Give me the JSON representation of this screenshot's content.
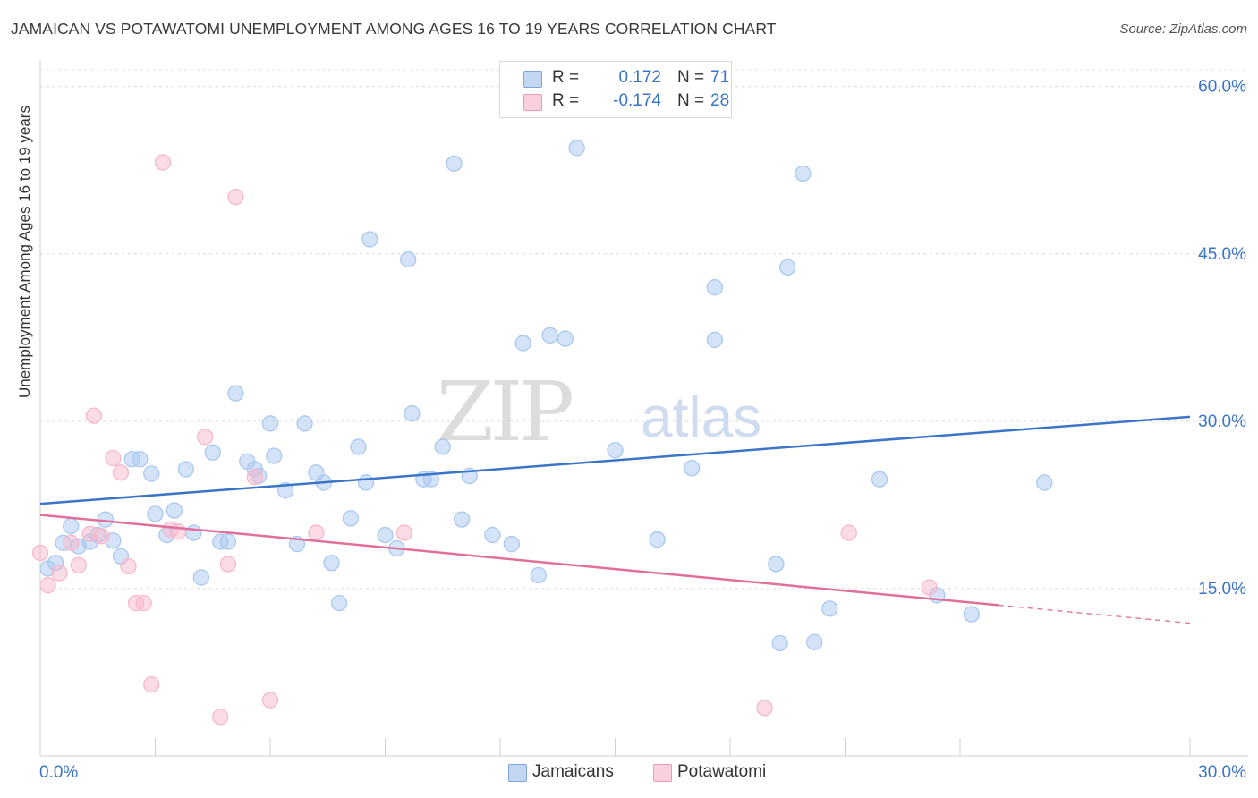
{
  "title": "JAMAICAN VS POTAWATOMI UNEMPLOYMENT AMONG AGES 16 TO 19 YEARS CORRELATION CHART",
  "source": "Source: ZipAtlas.com",
  "watermark": {
    "zip": "ZIP",
    "atlas": "atlas"
  },
  "legend_top": {
    "rows": [
      {
        "r_label": "R =",
        "r_value": "0.172",
        "n_label": "N =",
        "n_value": "71",
        "color": "#aac8f0"
      },
      {
        "r_label": "R =",
        "r_value": "-0.174",
        "n_label": "N =",
        "n_value": "28",
        "color": "#f7b8cb"
      }
    ]
  },
  "legend_bottom": [
    {
      "label": "Jamaicans",
      "color": "#aac8f0"
    },
    {
      "label": "Potawatomi",
      "color": "#f7b8cb"
    }
  ],
  "chart_data": {
    "type": "scatter",
    "title": "JAMAICAN VS POTAWATOMI UNEMPLOYMENT AMONG AGES 16 TO 19 YEARS CORRELATION CHART",
    "xlabel": "",
    "ylabel": "Unemployment Among Ages 16 to 19 years",
    "xlim": [
      0,
      30
    ],
    "ylim": [
      0,
      61.5
    ],
    "x_tick_labels": [
      "0.0%",
      "30.0%"
    ],
    "y_ticks": [
      15,
      30,
      45,
      60
    ],
    "y_tick_labels": [
      "15.0%",
      "30.0%",
      "45.0%",
      "60.0%"
    ],
    "grid": true,
    "legend": "top-center",
    "series": [
      {
        "name": "Jamaicans",
        "color": "#3b75c7",
        "fill": "#aac8f0",
        "trend": {
          "x": [
            0,
            30
          ],
          "y": [
            22.6,
            30.4
          ]
        },
        "points": [
          [
            0.2,
            16.8
          ],
          [
            0.4,
            17.3
          ],
          [
            0.6,
            19.1
          ],
          [
            0.8,
            20.6
          ],
          [
            1.0,
            18.8
          ],
          [
            1.3,
            19.2
          ],
          [
            1.5,
            19.8
          ],
          [
            1.7,
            21.2
          ],
          [
            1.9,
            19.3
          ],
          [
            2.1,
            17.9
          ],
          [
            2.4,
            26.6
          ],
          [
            2.6,
            26.6
          ],
          [
            2.9,
            25.3
          ],
          [
            3.0,
            21.7
          ],
          [
            3.3,
            19.8
          ],
          [
            3.5,
            22.0
          ],
          [
            3.8,
            25.7
          ],
          [
            4.0,
            20.0
          ],
          [
            4.2,
            16.0
          ],
          [
            4.5,
            27.2
          ],
          [
            4.7,
            19.2
          ],
          [
            4.9,
            19.2
          ],
          [
            5.1,
            32.5
          ],
          [
            5.4,
            26.4
          ],
          [
            5.6,
            25.7
          ],
          [
            5.7,
            25.1
          ],
          [
            6.0,
            29.8
          ],
          [
            6.1,
            26.9
          ],
          [
            6.4,
            23.8
          ],
          [
            6.7,
            19.0
          ],
          [
            6.9,
            29.8
          ],
          [
            7.2,
            25.4
          ],
          [
            7.4,
            24.5
          ],
          [
            7.6,
            17.3
          ],
          [
            7.8,
            13.7
          ],
          [
            8.1,
            21.3
          ],
          [
            8.3,
            27.7
          ],
          [
            8.5,
            24.5
          ],
          [
            8.6,
            46.3
          ],
          [
            9.0,
            19.8
          ],
          [
            9.3,
            18.6
          ],
          [
            9.6,
            44.5
          ],
          [
            9.7,
            30.7
          ],
          [
            10.0,
            24.8
          ],
          [
            10.2,
            24.8
          ],
          [
            10.5,
            27.7
          ],
          [
            10.8,
            53.1
          ],
          [
            11.0,
            21.2
          ],
          [
            11.2,
            25.1
          ],
          [
            11.8,
            19.8
          ],
          [
            12.3,
            19.0
          ],
          [
            12.6,
            37.0
          ],
          [
            13.0,
            16.2
          ],
          [
            13.3,
            37.7
          ],
          [
            13.7,
            37.4
          ],
          [
            14.0,
            54.5
          ],
          [
            15.0,
            27.4
          ],
          [
            16.1,
            19.4
          ],
          [
            17.0,
            25.8
          ],
          [
            17.6,
            37.3
          ],
          [
            17.6,
            42.0
          ],
          [
            19.2,
            17.2
          ],
          [
            19.3,
            10.1
          ],
          [
            19.5,
            43.8
          ],
          [
            19.9,
            52.2
          ],
          [
            20.2,
            10.2
          ],
          [
            20.6,
            13.2
          ],
          [
            21.9,
            24.8
          ],
          [
            23.4,
            14.4
          ],
          [
            24.3,
            12.7
          ],
          [
            26.2,
            24.5
          ]
        ]
      },
      {
        "name": "Potawatomi",
        "color": "#e0709a",
        "fill": "#f7b8cb",
        "trend": {
          "x": [
            0,
            30
          ],
          "y": [
            21.6,
            11.9
          ],
          "solid_until_x": 25
        },
        "points": [
          [
            0.0,
            18.2
          ],
          [
            0.2,
            15.3
          ],
          [
            0.5,
            16.4
          ],
          [
            0.8,
            19.1
          ],
          [
            1.0,
            17.1
          ],
          [
            1.3,
            19.9
          ],
          [
            1.4,
            30.5
          ],
          [
            1.6,
            19.7
          ],
          [
            1.9,
            26.7
          ],
          [
            2.1,
            25.4
          ],
          [
            2.3,
            17.0
          ],
          [
            2.5,
            13.7
          ],
          [
            2.7,
            13.7
          ],
          [
            2.9,
            6.4
          ],
          [
            3.2,
            53.2
          ],
          [
            3.4,
            20.3
          ],
          [
            3.6,
            20.1
          ],
          [
            4.3,
            28.6
          ],
          [
            4.7,
            3.5
          ],
          [
            4.9,
            17.2
          ],
          [
            5.1,
            50.1
          ],
          [
            5.6,
            25.0
          ],
          [
            6.0,
            5.0
          ],
          [
            7.2,
            20.0
          ],
          [
            9.5,
            20.0
          ],
          [
            18.9,
            4.3
          ],
          [
            21.1,
            20.0
          ],
          [
            23.2,
            15.1
          ]
        ]
      }
    ]
  }
}
